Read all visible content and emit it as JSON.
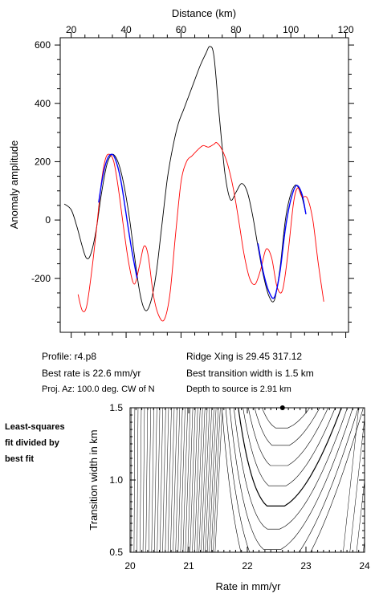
{
  "info": {
    "profile": "Profile: r4.p8",
    "best_rate": "Best rate is 22.6 mm/yr",
    "proj_az": "Proj. Az: 100.0 deg. CW of N",
    "ridge_xing": "Ridge Xing is 29.45 317.12",
    "best_transition": "Best transition width is 1.5 km",
    "depth": "Depth to source is   2.91 km"
  },
  "side_note": [
    "Least-squares",
    "fit divided by",
    "best fit"
  ],
  "chart_data": [
    {
      "type": "line",
      "xlabel": "Distance (km)",
      "ylabel": "Anomaly amplitude",
      "xlim": [
        16,
        121
      ],
      "ylim": [
        -385,
        625
      ],
      "xticks": [
        20,
        40,
        60,
        80,
        100,
        120
      ],
      "yticks": [
        -200,
        0,
        200,
        400,
        600
      ],
      "colors": {
        "observed": "#000000",
        "model": "#ff0000",
        "fit": "#0000ff"
      },
      "series": [
        {
          "color": "#000000",
          "x": [
            17.5,
            20,
            22,
            24,
            25.5,
            27,
            29,
            31,
            33,
            35,
            37,
            39,
            41,
            43,
            45,
            47,
            49,
            51,
            53,
            55,
            57,
            59,
            61,
            63,
            65,
            67,
            69,
            70.5,
            72,
            74,
            76,
            78,
            80,
            82,
            84,
            86,
            88,
            90,
            92,
            94,
            96,
            98,
            100,
            102,
            104,
            105.5
          ],
          "y": [
            55,
            35,
            -20,
            -90,
            -130,
            -120,
            -40,
            90,
            190,
            225,
            200,
            130,
            20,
            -120,
            -250,
            -310,
            -280,
            -180,
            -20,
            140,
            250,
            330,
            380,
            430,
            480,
            530,
            570,
            595,
            560,
            350,
            160,
            70,
            95,
            125,
            100,
            20,
            -90,
            -190,
            -260,
            -275,
            -170,
            0,
            90,
            120,
            80,
            20
          ]
        },
        {
          "color": "#ff0000",
          "x": [
            22.5,
            24,
            25.5,
            27,
            29,
            31,
            32.5,
            34,
            35.5,
            37,
            39,
            41,
            43,
            45,
            46.5,
            48,
            50,
            52,
            54,
            56,
            58,
            60,
            62,
            64,
            66,
            68,
            70,
            72,
            73,
            75,
            77,
            79,
            81,
            83,
            85,
            87,
            89,
            91,
            93,
            95,
            97,
            99,
            101,
            102.5,
            104,
            106,
            108,
            110,
            112
          ],
          "y": [
            -255,
            -310,
            -300,
            -210,
            -50,
            130,
            210,
            225,
            200,
            120,
            -20,
            -150,
            -220,
            -150,
            -90,
            -120,
            -260,
            -330,
            -340,
            -250,
            -50,
            130,
            200,
            220,
            240,
            255,
            250,
            260,
            265,
            240,
            190,
            110,
            0,
            -120,
            -200,
            -220,
            -170,
            -100,
            -130,
            -230,
            -240,
            -110,
            60,
            110,
            80,
            75,
            0,
            -150,
            -280
          ]
        },
        {
          "color": "#0000ff",
          "x": [
            30,
            31.5,
            33,
            34.5,
            36,
            38,
            40,
            42,
            44
          ],
          "y": [
            60,
            150,
            205,
            225,
            210,
            140,
            20,
            -100,
            -200
          ]
        },
        {
          "color": "#0000ff",
          "x": [
            88,
            90,
            92,
            94,
            96,
            98,
            100,
            102,
            104,
            105.5
          ],
          "y": [
            -80,
            -180,
            -245,
            -265,
            -180,
            -30,
            70,
            118,
            90,
            20
          ]
        }
      ]
    },
    {
      "type": "contour",
      "xlabel": "Rate in mm/yr",
      "ylabel": "Transition width in km",
      "xlim": [
        20,
        24
      ],
      "ylim": [
        0.5,
        1.5
      ],
      "xticks": [
        20,
        21,
        22,
        23,
        24
      ],
      "yticks": [
        0.5,
        1.0,
        1.5
      ],
      "best_fit_point": {
        "x": 22.6,
        "y": 1.5
      }
    }
  ]
}
